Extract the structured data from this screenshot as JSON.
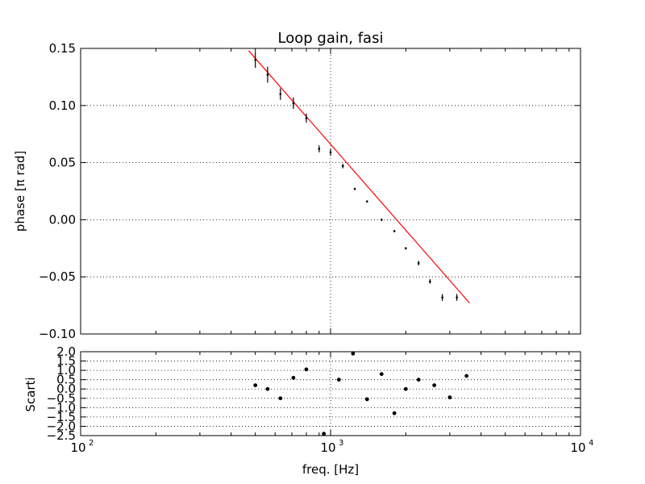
{
  "chart_data": [
    {
      "type": "scatter",
      "title": "Loop gain, fasi",
      "xlabel": "",
      "ylabel": "phase [π rad]",
      "xscale": "log",
      "xlim": [
        100,
        10000
      ],
      "ylim": [
        -0.1,
        0.15
      ],
      "yticks": [
        "0.15",
        "0.10",
        "0.05",
        "0.00",
        "−0.05",
        "−0.10"
      ],
      "ytick_values": [
        0.15,
        0.1,
        0.05,
        0.0,
        -0.05,
        -0.1
      ],
      "grid": true,
      "series": [
        {
          "kind": "errorbar",
          "color": "#000000",
          "x": [
            500,
            560,
            630,
            710,
            800,
            900,
            1000,
            1120,
            1250,
            1400,
            1600,
            1800,
            2000,
            2250,
            2500,
            2800,
            3200
          ],
          "y": [
            0.14,
            0.127,
            0.11,
            0.102,
            0.089,
            0.062,
            0.059,
            0.047,
            0.027,
            0.016,
            0.0,
            -0.01,
            -0.025,
            -0.038,
            -0.054,
            -0.068,
            -0.068
          ],
          "yerr": [
            0.007,
            0.007,
            0.005,
            0.005,
            0.004,
            0.003,
            0.003,
            0.002,
            0.001,
            0.001,
            0.001,
            0.001,
            0.001,
            0.002,
            0.002,
            0.003,
            0.003
          ]
        },
        {
          "kind": "fit-line",
          "color": "#ff0000",
          "x": [
            470,
            3600
          ],
          "y": [
            0.148,
            -0.073
          ]
        }
      ]
    },
    {
      "type": "scatter",
      "title": "",
      "xlabel": "freq. [Hz]",
      "ylabel": "Scarti",
      "xscale": "log",
      "xlim": [
        100,
        10000
      ],
      "ylim": [
        -2.5,
        2.0
      ],
      "xticks": [
        "10",
        "10",
        "10"
      ],
      "xtick_exponents": [
        "2",
        "3",
        "4"
      ],
      "xtick_values": [
        100,
        1000,
        10000
      ],
      "yticks": [
        "2.0",
        "1.5",
        "1.0",
        "0.5",
        "0.0",
        "−0.5",
        "−1.0",
        "−1.5",
        "−2.0",
        "−2.5"
      ],
      "ytick_values": [
        2.0,
        1.5,
        1.0,
        0.5,
        0.0,
        -0.5,
        -1.0,
        -1.5,
        -2.0,
        -2.5
      ],
      "grid": true,
      "series": [
        {
          "kind": "points",
          "color": "#000000",
          "x": [
            500,
            560,
            630,
            710,
            800,
            940,
            1080,
            1230,
            1400,
            1600,
            1800,
            2000,
            2250,
            2600,
            3000,
            3500
          ],
          "y": [
            0.2,
            0.0,
            -0.5,
            0.6,
            1.05,
            -2.4,
            0.5,
            1.9,
            -0.55,
            0.8,
            -1.3,
            0.0,
            0.5,
            0.2,
            -0.45,
            0.7
          ]
        }
      ]
    }
  ]
}
